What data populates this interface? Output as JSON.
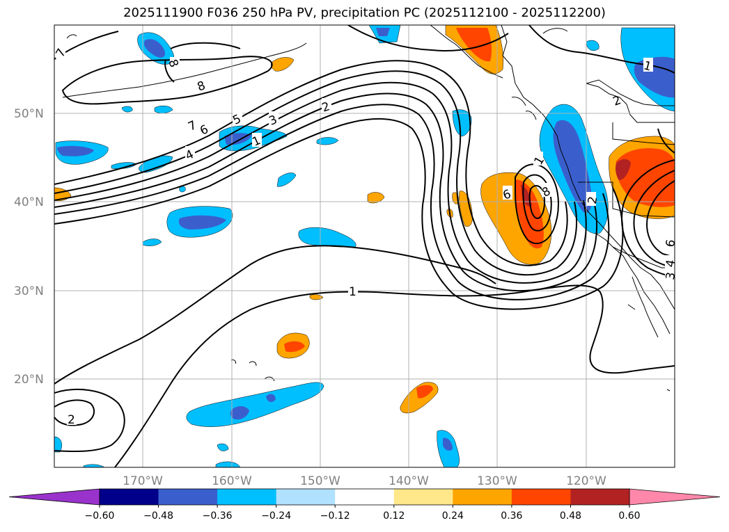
{
  "title": "2025111900 F036 250 hPa PV, precipitation PC (2025112100 - 2025112200)",
  "lat_labels": [
    "50°N",
    "40°N",
    "30°N",
    "20°N"
  ],
  "lon_labels": [
    "170°W",
    "160°W",
    "150°W",
    "140°W",
    "130°W",
    "120°W"
  ],
  "colorbar": {
    "ticks": [
      "−0.60",
      "−0.48",
      "−0.36",
      "−0.24",
      "−0.12",
      "0.12",
      "0.24",
      "0.36",
      "0.48",
      "0.60"
    ],
    "colors": [
      "#9933cc",
      "#00008b",
      "#3a5fcd",
      "#00bfff",
      "#b0e2ff",
      "#ffffff",
      "#ffe78a",
      "#ffa500",
      "#ff4500",
      "#b22222",
      "#ff88aa"
    ]
  },
  "contour_labels": [
    "7",
    "8",
    "8",
    "7",
    "6",
    "5",
    "4",
    "3",
    "2",
    "1",
    "1",
    "1",
    "2",
    "6",
    "8",
    "1",
    "2",
    "6",
    "4",
    "3",
    "2"
  ],
  "colors": {
    "negative_light": "#00bfff",
    "negative_dark": "#3a5fcd",
    "positive_light": "#ffa500",
    "positive_dark": "#ff4500",
    "contour": "#000000",
    "grid": "#b0b0b0"
  }
}
